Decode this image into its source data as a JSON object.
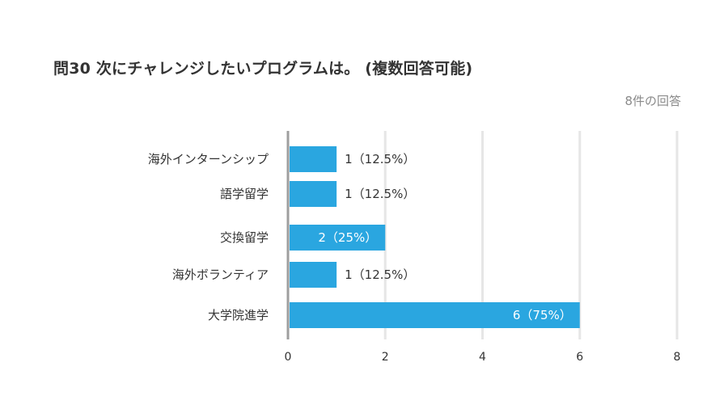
{
  "header": {
    "title": "問30 次にチャレンジしたいプログラムは。 (複数回答可能)",
    "response_count": "8件の回答"
  },
  "colors": {
    "bar": "#2aa6e0",
    "grid": "#e6e6e6",
    "axis": "#9e9e9e",
    "label_outside": "#333333",
    "label_inside": "#ffffff"
  },
  "chart_data": {
    "type": "bar",
    "orientation": "horizontal",
    "categories": [
      "海外インターンシップ",
      "語学留学",
      "交換留学",
      "海外ボランティア",
      "大学院進学"
    ],
    "values": [
      1,
      1,
      2,
      1,
      6
    ],
    "data_labels": [
      "1（12.5%）",
      "1（12.5%）",
      "2（25%）",
      "1（12.5%）",
      "6（75%）"
    ],
    "xlim": [
      0,
      8
    ],
    "xticks": [
      0,
      2,
      4,
      6,
      8
    ],
    "grid": true,
    "legend": "none"
  }
}
